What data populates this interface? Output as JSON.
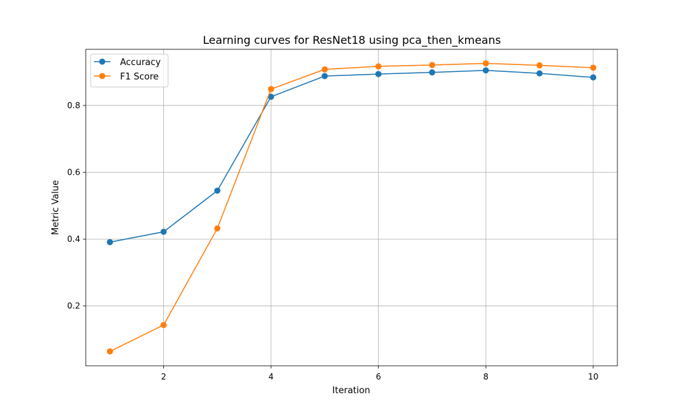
{
  "chart_data": {
    "type": "line",
    "title": "Learning curves for ResNet18 using pca_then_kmeans",
    "xlabel": "Iteration",
    "ylabel": "Metric Value",
    "x": [
      1,
      2,
      3,
      4,
      5,
      6,
      7,
      8,
      9,
      10
    ],
    "xlim": [
      0.55,
      10.45
    ],
    "ylim": [
      0.021,
      0.968
    ],
    "xticks": [
      2,
      4,
      6,
      8,
      10
    ],
    "yticks": [
      0.2,
      0.4,
      0.6,
      0.8
    ],
    "xtick_labels": [
      "2",
      "4",
      "6",
      "8",
      "10"
    ],
    "ytick_labels": [
      "0.2",
      "0.4",
      "0.6",
      "0.8"
    ],
    "grid": true,
    "legend_position": "top-left",
    "series": [
      {
        "name": "Accuracy",
        "color": "#1f77b4",
        "marker": "circle",
        "values": [
          0.391,
          0.422,
          0.545,
          0.826,
          0.888,
          0.894,
          0.899,
          0.905,
          0.896,
          0.884
        ]
      },
      {
        "name": "F1 Score",
        "color": "#ff7f0e",
        "marker": "circle",
        "values": [
          0.064,
          0.143,
          0.432,
          0.849,
          0.908,
          0.917,
          0.921,
          0.926,
          0.92,
          0.913
        ]
      }
    ]
  }
}
